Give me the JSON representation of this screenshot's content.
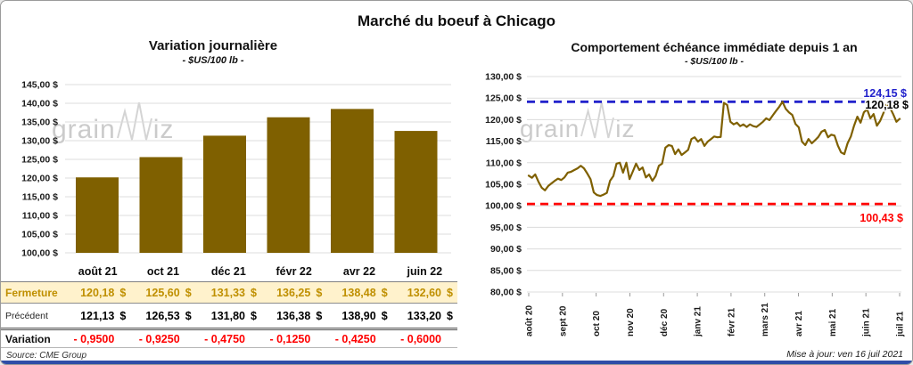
{
  "page": {
    "title": "Marché du boeuf à Chicago",
    "source": "Source: CME Group",
    "updated": "Mise à jour: ven 16 juil 2021"
  },
  "watermark": {
    "prefix": "grain",
    "suffix": "iz"
  },
  "colors": {
    "series": "#7F6000",
    "gridline": "#DCDCDC",
    "high_line": "#2222CC",
    "low_line": "#FF0000",
    "fermeture_bg": "#FFF2CC",
    "fermeture_text": "#BF8F00",
    "variation_text": "#FF0000",
    "bottom_bar": "#2E4DA7"
  },
  "chart_data": [
    {
      "type": "bar",
      "title": "Variation journalière",
      "subtitle": "- $US/100 lb -",
      "categories": [
        "août 21",
        "oct 21",
        "déc 21",
        "févr 22",
        "avr 22",
        "juin 22"
      ],
      "values": [
        120.18,
        125.6,
        131.33,
        136.25,
        138.48,
        132.6
      ],
      "xlabel": "",
      "ylabel": "$US/100 lb",
      "ylim": [
        100,
        145
      ],
      "ytick_step": 5,
      "ytick_labels": [
        "145,00 $",
        "140,00 $",
        "135,00 $",
        "130,00 $",
        "125,00 $",
        "120,00 $",
        "115,00 $",
        "110,00 $",
        "105,00 $",
        "100,00 $"
      ],
      "grid": true,
      "bar_color": "#7F6000"
    },
    {
      "type": "line",
      "title": "Comportement échéance immédiate depuis 1 an",
      "subtitle": "- $US/100 lb -",
      "x_labels": [
        "août 20",
        "sept 20",
        "oct 20",
        "nov 20",
        "déc 20",
        "janv 21",
        "févr 21",
        "mars 21",
        "avr 21",
        "mai 21",
        "juin 21",
        "juil 21"
      ],
      "values": [
        107.0,
        106.5,
        107.3,
        105.6,
        104.2,
        103.6,
        104.6,
        105.2,
        105.8,
        106.3,
        106.0,
        106.6,
        107.7,
        107.9,
        108.3,
        108.7,
        109.3,
        108.7,
        107.5,
        106.2,
        103.1,
        102.5,
        102.3,
        102.6,
        103.0,
        105.8,
        106.9,
        109.8,
        110.0,
        107.7,
        110.0,
        106.2,
        108.0,
        109.8,
        108.3,
        108.9,
        106.6,
        107.3,
        105.8,
        106.9,
        109.3,
        109.8,
        113.5,
        114.1,
        113.9,
        112.0,
        113.1,
        111.8,
        112.4,
        113.0,
        115.5,
        115.9,
        114.9,
        115.5,
        113.9,
        114.9,
        115.5,
        116.1,
        115.9,
        116.0,
        123.9,
        123.4,
        119.5,
        118.9,
        119.3,
        118.5,
        118.9,
        118.3,
        118.9,
        118.5,
        118.3,
        118.9,
        119.5,
        120.3,
        119.9,
        121.0,
        122.0,
        123.0,
        124.15,
        122.5,
        121.7,
        121.1,
        119.0,
        118.2,
        114.9,
        114.1,
        115.5,
        114.5,
        115.2,
        116.0,
        117.2,
        117.6,
        115.9,
        116.5,
        116.3,
        114.0,
        112.4,
        112.0,
        114.5,
        116.1,
        118.6,
        120.7,
        119.3,
        121.7,
        122.4,
        120.3,
        121.3,
        118.6,
        119.7,
        121.5,
        123.5,
        122.8,
        121.3,
        119.5,
        120.18
      ],
      "ylim": [
        80,
        130
      ],
      "ytick_step": 5,
      "ytick_labels": [
        "130,00 $",
        "125,00 $",
        "120,00 $",
        "115,00 $",
        "110,00 $",
        "105,00 $",
        "100,00 $",
        "95,00 $",
        "90,00 $",
        "85,00 $",
        "80,00 $"
      ],
      "grid": true,
      "line_color": "#7F6000",
      "high_line": {
        "value": 124.15,
        "label": "124,15 $",
        "color": "#2222CC"
      },
      "low_line": {
        "value": 100.43,
        "label": "100,43 $",
        "color": "#FF0000"
      },
      "last_label": "120,18 $"
    }
  ],
  "table": {
    "col_headers": [
      "août 21",
      "oct 21",
      "déc 21",
      "févr 22",
      "avr 22",
      "juin 22"
    ],
    "rows": [
      {
        "label": "Fermeture",
        "unit": "$",
        "values": [
          "120,18",
          "125,60",
          "131,33",
          "136,25",
          "138,48",
          "132,60"
        ]
      },
      {
        "label": "Précédent",
        "unit": "$",
        "values": [
          "121,13",
          "126,53",
          "131,80",
          "136,38",
          "138,90",
          "133,20"
        ]
      },
      {
        "label": "Variation",
        "unit": "",
        "values": [
          "- 0,9500",
          "- 0,9250",
          "- 0,4750",
          "- 0,1250",
          "- 0,4250",
          "- 0,6000"
        ]
      }
    ]
  }
}
